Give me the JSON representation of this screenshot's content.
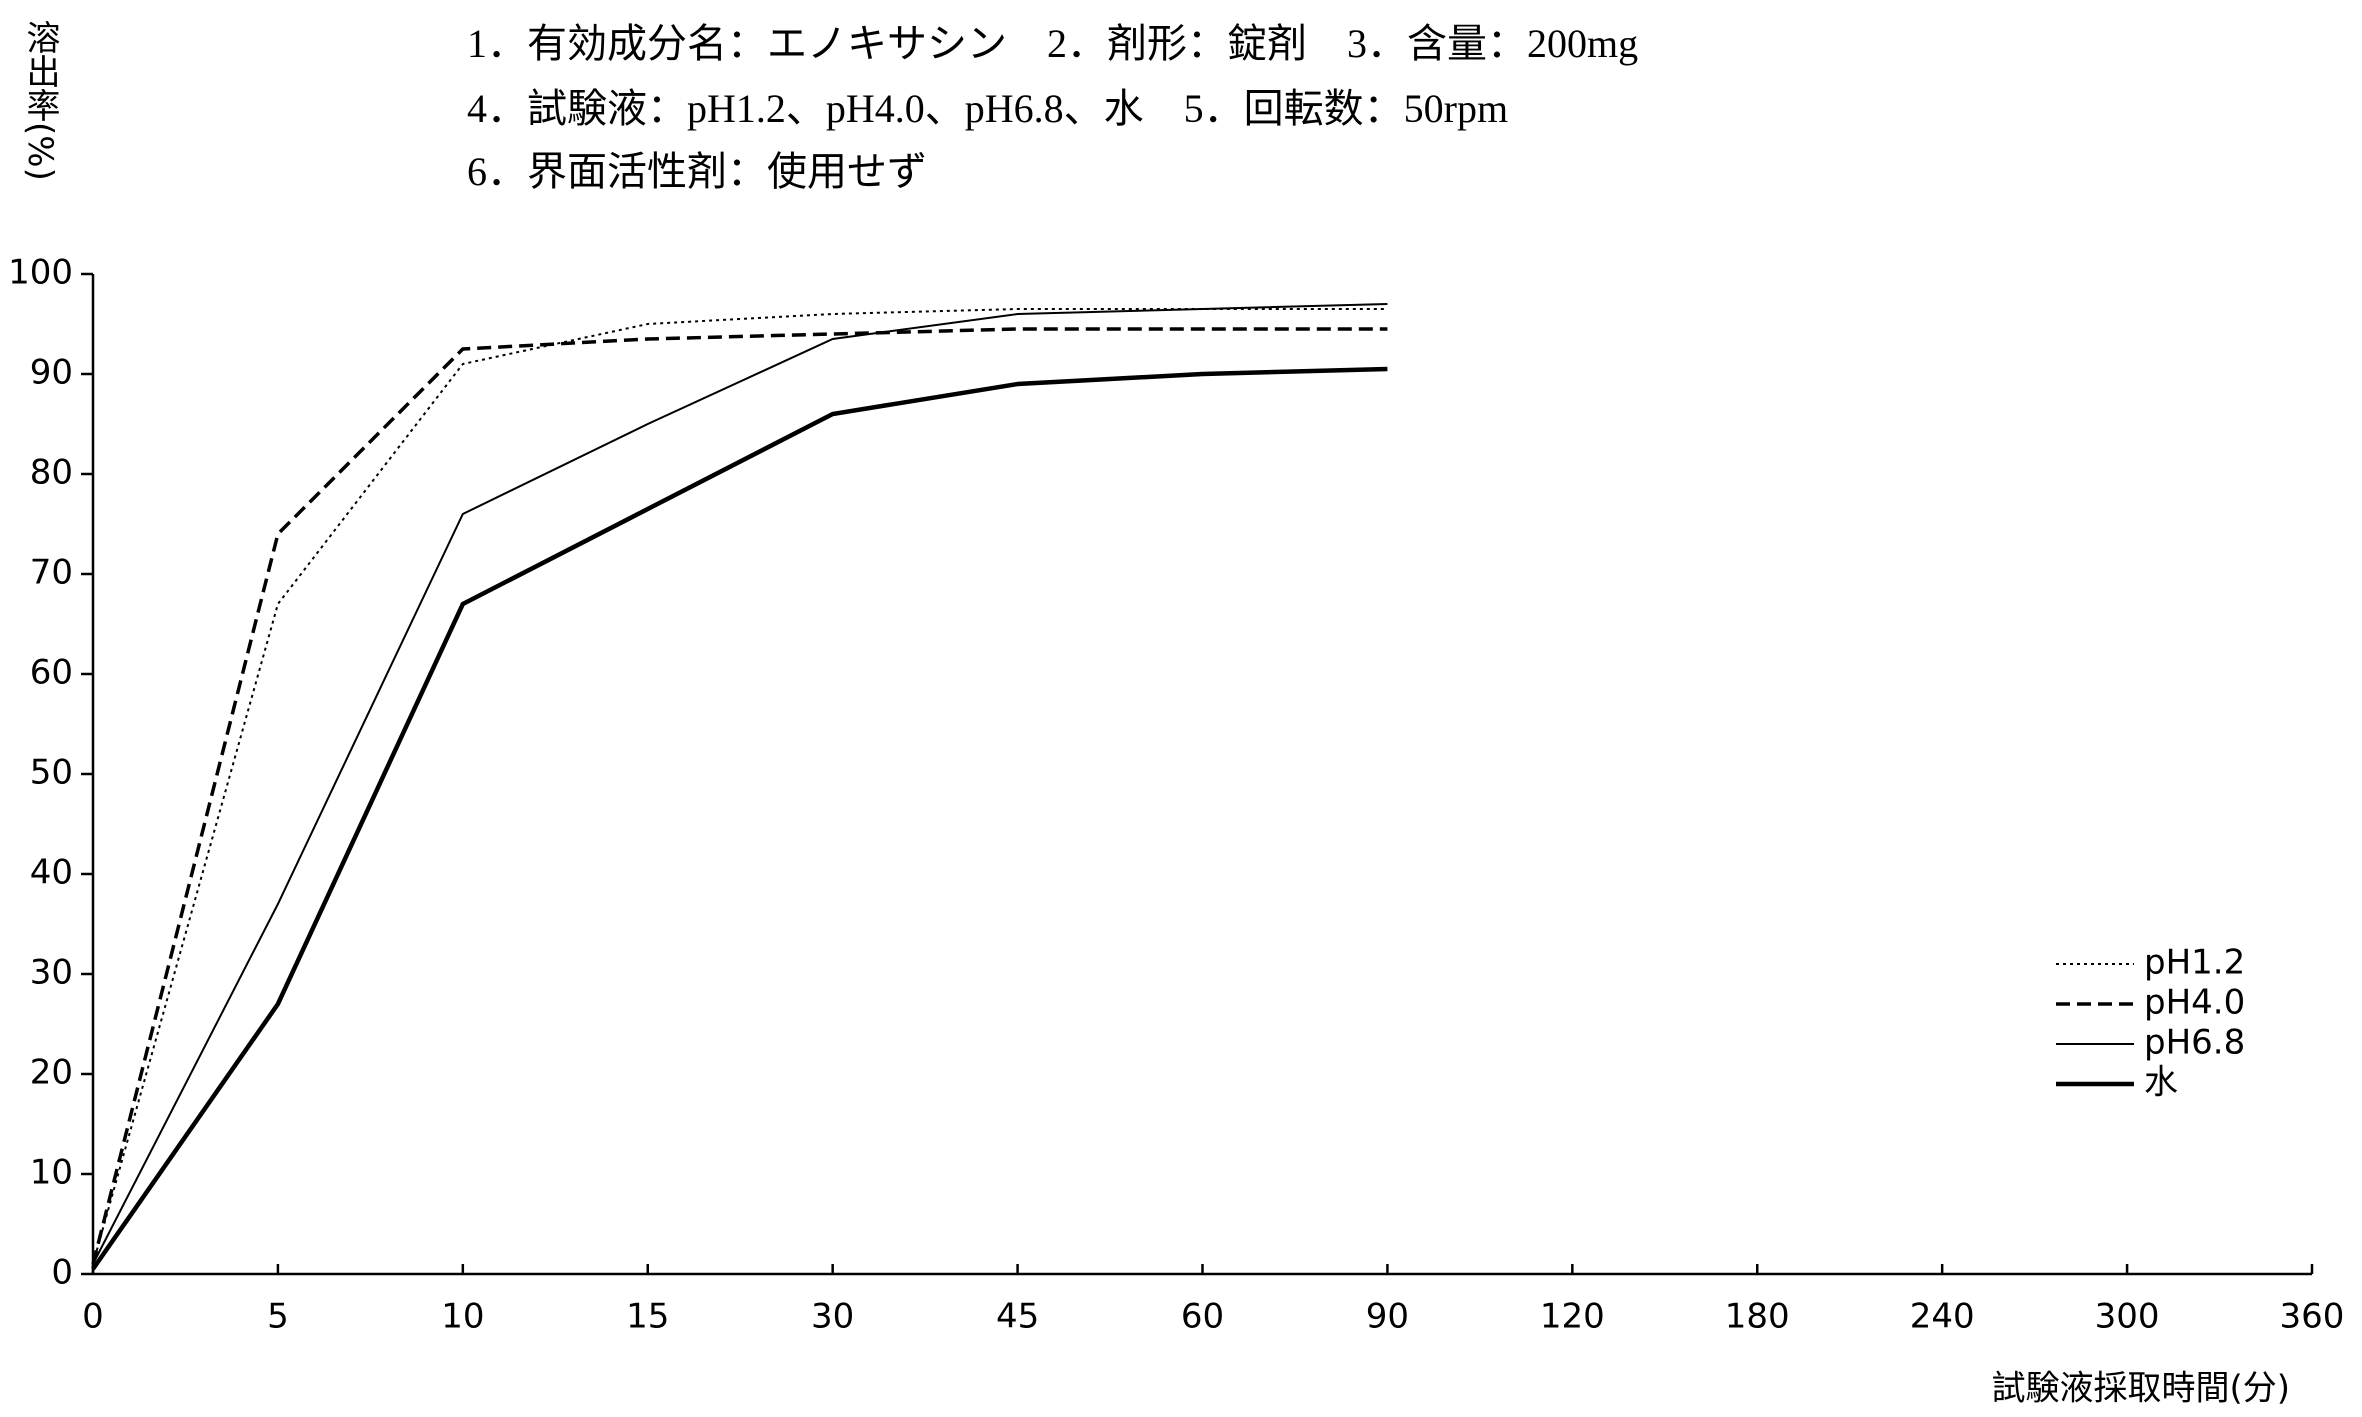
{
  "chart_data": {
    "type": "line",
    "header": [
      "1．有効成分名：エノキサシン　2．剤形：錠剤　3．含量：200mg",
      "4．試験液：pH1.2、pH4.0、pH6.8、水　5．回転数：50rpm",
      "6．界面活性剤：使用せず"
    ],
    "y_label": "溶出率(%)",
    "x_label": "試験液採取時間(分)",
    "categories": [
      "0",
      "5",
      "10",
      "15",
      "30",
      "45",
      "60",
      "90",
      "120",
      "180",
      "240",
      "300",
      "360"
    ],
    "series": [
      {
        "name": "pH1.2",
        "color": "#000000",
        "line_style": "dotted",
        "values": [
          1,
          67,
          91,
          95,
          96,
          96.5,
          96.5,
          96.5,
          null,
          null,
          null,
          null,
          null
        ]
      },
      {
        "name": "pH4.0",
        "color": "#000000",
        "line_style": "dashed",
        "values": [
          1,
          74,
          92.5,
          93.5,
          94,
          94.5,
          94.5,
          94.5,
          null,
          null,
          null,
          null,
          null
        ]
      },
      {
        "name": "pH6.8",
        "color": "#000000",
        "line_style": "thin",
        "values": [
          1,
          37,
          76,
          85,
          93.5,
          96,
          96.5,
          97,
          null,
          null,
          null,
          null,
          null
        ]
      },
      {
        "name": "水",
        "color": "#000000",
        "line_style": "thick",
        "values": [
          0.5,
          27,
          67,
          76.5,
          86,
          89,
          90,
          90.5,
          null,
          null,
          null,
          null,
          null
        ]
      }
    ],
    "ylim": [
      0,
      100
    ],
    "yticks": [
      0,
      10,
      20,
      30,
      40,
      50,
      60,
      70,
      80,
      90,
      100
    ],
    "legend": "right"
  }
}
